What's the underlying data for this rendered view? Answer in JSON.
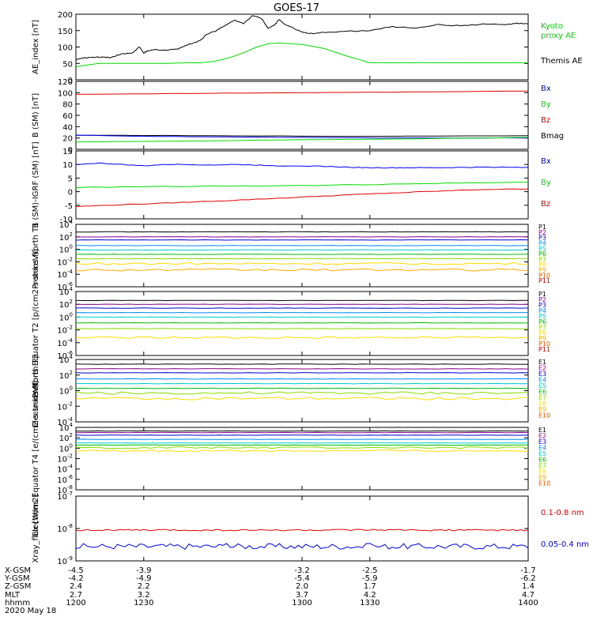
{
  "title": "GOES-17",
  "colors": {
    "black": "#000000",
    "blue": "#0000ee",
    "green": "#00dd00",
    "red": "#dd0000",
    "P": [
      "#000000",
      "#880088",
      "#0000cc",
      "#0088ff",
      "#00cccc",
      "#00bb00",
      "#88dd00",
      "#ffdd00",
      "#ffaa00",
      "#ee5500",
      "#cc0000"
    ],
    "E": [
      "#000000",
      "#880088",
      "#0000cc",
      "#0088ff",
      "#00cccc",
      "#00bb00",
      "#88dd00",
      "#ffdd00",
      "#ffaa00",
      "#ee5500",
      "#cc0000"
    ]
  },
  "chart_data": [
    {
      "id": "ae",
      "type": "line",
      "ylabel": "AE_index [nT]",
      "ylim": [
        0,
        200
      ],
      "yticks": [
        "0",
        "50",
        "100",
        "150",
        "200"
      ],
      "series": [
        {
          "name": "Kyoto proxy AE",
          "color": "green",
          "x": [
            1200,
            1210,
            1220,
            1230,
            1240,
            1250,
            1255,
            1260,
            1265,
            1270,
            1275,
            1280,
            1285,
            1290,
            1300,
            1310,
            1320,
            1330,
            1340,
            1350,
            1360,
            1370,
            1380,
            1390,
            1400
          ],
          "y": [
            40,
            50,
            50,
            50,
            50,
            52,
            52,
            55,
            62,
            72,
            85,
            100,
            110,
            112,
            108,
            95,
            72,
            52,
            52,
            52,
            52,
            52,
            52,
            52,
            52
          ]
        },
        {
          "name": "Themis AE",
          "color": "black",
          "x": [
            1200,
            1203,
            1206,
            1210,
            1215,
            1220,
            1225,
            1228,
            1230,
            1232,
            1235,
            1240,
            1245,
            1250,
            1255,
            1258,
            1262,
            1266,
            1270,
            1274,
            1278,
            1282,
            1285,
            1288,
            1290,
            1292,
            1295,
            1300,
            1305,
            1310,
            1320,
            1330,
            1340,
            1350,
            1360,
            1370,
            1380,
            1390,
            1395,
            1400
          ],
          "y": [
            62,
            66,
            68,
            70,
            68,
            78,
            82,
            100,
            82,
            88,
            92,
            90,
            95,
            108,
            120,
            140,
            150,
            165,
            182,
            172,
            195,
            188,
            158,
            168,
            185,
            170,
            162,
            145,
            140,
            145,
            148,
            150,
            162,
            158,
            168,
            165,
            170,
            168,
            172,
            170
          ]
        }
      ],
      "legend": [
        {
          "label": "Kyoto",
          "color": "green"
        },
        {
          "label": "proxy AE",
          "color": "green"
        },
        {
          "label": "Themis AE",
          "color": "black"
        }
      ]
    },
    {
      "id": "bsm",
      "type": "line",
      "ylabel": "B (SM) [nT]",
      "ylim": [
        0,
        120
      ],
      "yticks": [
        "0",
        "20",
        "40",
        "60",
        "80",
        "100",
        "120"
      ],
      "series": [
        {
          "name": "Bmag",
          "color": "black",
          "x": [
            1200,
            1260,
            1320,
            1400
          ],
          "y": [
            25,
            24,
            23,
            24
          ]
        },
        {
          "name": "Bz",
          "color": "red",
          "x": [
            1200,
            1230,
            1260,
            1300,
            1340,
            1400
          ],
          "y": [
            97,
            98,
            99,
            100,
            101,
            103
          ]
        },
        {
          "name": "Bx",
          "color": "blue",
          "x": [
            1200,
            1230,
            1260,
            1300,
            1340,
            1400
          ],
          "y": [
            25,
            23,
            22,
            21,
            20,
            20
          ]
        },
        {
          "name": "By",
          "color": "green",
          "x": [
            1200,
            1230,
            1260,
            1300,
            1340,
            1400
          ],
          "y": [
            13,
            14,
            15,
            17,
            18,
            21
          ]
        }
      ],
      "legend": [
        {
          "label": "Bx",
          "color": "blue"
        },
        {
          "label": "By",
          "color": "green"
        },
        {
          "label": "Bz",
          "color": "red"
        },
        {
          "label": "Bmag",
          "color": "black"
        }
      ]
    },
    {
      "id": "bigrf",
      "type": "line",
      "ylabel": "B (SM)-IGRF (SM) [nT]",
      "ylim": [
        -10,
        15
      ],
      "yticks": [
        "-10",
        "-5",
        "0",
        "5",
        "10",
        "15"
      ],
      "series": [
        {
          "name": "Bx",
          "color": "blue",
          "x": [
            1200,
            1210,
            1220,
            1230,
            1240,
            1250,
            1260,
            1270,
            1280,
            1290,
            1300,
            1310,
            1320,
            1330,
            1340,
            1350,
            1360,
            1370,
            1380,
            1390,
            1400
          ],
          "y": [
            10,
            10.5,
            10,
            9.5,
            10,
            10,
            9.8,
            10,
            9.8,
            9.5,
            9.5,
            9.3,
            9,
            8.8,
            8.8,
            8.8,
            8.8,
            8.9,
            9,
            9,
            9
          ]
        },
        {
          "name": "By",
          "color": "green",
          "x": [
            1200,
            1230,
            1260,
            1300,
            1340,
            1370,
            1400
          ],
          "y": [
            1.5,
            1.8,
            2,
            2.2,
            2.8,
            3.2,
            3.5
          ]
        },
        {
          "name": "Bz",
          "color": "red",
          "x": [
            1200,
            1220,
            1240,
            1260,
            1280,
            1300,
            1320,
            1340,
            1360,
            1380,
            1400
          ],
          "y": [
            -5.5,
            -4.8,
            -4.2,
            -3.5,
            -2.8,
            -2,
            -1.2,
            -0.5,
            0.2,
            0.8,
            1
          ]
        }
      ],
      "legend": [
        {
          "label": "Bx",
          "color": "blue"
        },
        {
          "label": "By",
          "color": "green"
        },
        {
          "label": "Bz",
          "color": "red"
        }
      ]
    },
    {
      "id": "pn",
      "type": "line",
      "yscale": "log",
      "ylabel": "Protons North T1",
      "ylim_exp": [
        -6,
        4
      ],
      "yticks": [
        "10^-6",
        "10^-4",
        "10^-2",
        "10^0",
        "10^2",
        "10^4"
      ],
      "levels": [
        2.8,
        2.0,
        1.5,
        0.6,
        -0.1,
        -0.8,
        -1.5,
        -2.3,
        -3.3,
        null,
        null
      ],
      "legend": [
        "P1",
        "P2",
        "P3",
        "P4",
        "P5",
        "P6",
        "P7",
        "P8",
        "P9",
        "P10",
        "P11"
      ]
    },
    {
      "id": "pe",
      "type": "line",
      "yscale": "log",
      "ylabel": "Protons Equator T2 [p/(cm2-s-sr-keV)]",
      "ylim_exp": [
        -6,
        4
      ],
      "yticks": [
        "10^-6",
        "10^-4",
        "10^-2",
        "10^0",
        "10^2",
        "10^4"
      ],
      "levels": [
        2.6,
        2.0,
        1.4,
        0.7,
        0.0,
        -0.9,
        -1.8,
        -3.2,
        null,
        null,
        null
      ],
      "legend": [
        "P1",
        "P2",
        "P3",
        "P4",
        "P5",
        "P6",
        "P7",
        "P8",
        "P9",
        "P10",
        "P11"
      ]
    },
    {
      "id": "en",
      "type": "line",
      "yscale": "log",
      "ylabel": "Electrons North T3",
      "ylim_exp": [
        -4,
        4
      ],
      "yticks": [
        "10^-4",
        "10^-2",
        "10^0",
        "10^2",
        "10^4"
      ],
      "levels": [
        3.4,
        2.8,
        2.3,
        1.5,
        0.9,
        0.3,
        -0.3,
        -1.0,
        null,
        null
      ],
      "legend": [
        "E1",
        "E2",
        "E3",
        "E4",
        "E5",
        "E6",
        "E7",
        "E8",
        "E9",
        "E10"
      ]
    },
    {
      "id": "ee",
      "type": "line",
      "yscale": "log",
      "ylabel": "Electrons Equator T4 [e/(cm2-s-sr-keV)]",
      "ylim_exp": [
        -8,
        4
      ],
      "yticks": [
        "10^-8",
        "10^-6",
        "10^-4",
        "10^-2",
        "10^0",
        "10^2",
        "10^4"
      ],
      "levels": [
        3.3,
        3.0,
        2.5,
        1.7,
        1.0,
        0.6,
        0.1,
        -0.5,
        null,
        null
      ],
      "legend": [
        "E1",
        "E2",
        "E3",
        "E4",
        "E5",
        "E6",
        "E7",
        "E8",
        "E9",
        "E10"
      ]
    },
    {
      "id": "xray",
      "type": "line",
      "yscale": "log",
      "ylabel": "Xray_flux [W/m2]",
      "ylim_exp": [
        -9,
        -7
      ],
      "yticks": [
        "10^-9",
        "10^-8",
        "10^-7"
      ],
      "series": [
        {
          "name": "0.1-0.8 nm",
          "color": "red",
          "level": -8.05
        },
        {
          "name": "0.05-0.4 nm",
          "color": "blue",
          "level": -8.55
        }
      ],
      "legend": [
        {
          "label": "0.1-0.8 nm",
          "color": "red"
        },
        {
          "label": "0.05-0.4 nm",
          "color": "blue"
        }
      ]
    }
  ],
  "x_axis": {
    "xlim": [
      1200,
      1400
    ],
    "row_labels": [
      "X-GSM",
      "Y-GSM",
      "Z-GSM",
      "MLT",
      "hhmm",
      "2020 May 18"
    ],
    "columns": [
      {
        "hhmm": "1200",
        "X-GSM": "-4.5",
        "Y-GSM": "-4.2",
        "Z-GSM": "2.4",
        "MLT": "2.7"
      },
      {
        "hhmm": "1230",
        "X-GSM": "-3.9",
        "Y-GSM": "-4.9",
        "Z-GSM": "2.2",
        "MLT": "3.2"
      },
      {
        "hhmm": "1300",
        "X-GSM": "-3.2",
        "Y-GSM": "-5.4",
        "Z-GSM": "2.0",
        "MLT": "3.7"
      },
      {
        "hhmm": "1330",
        "X-GSM": "-2.5",
        "Y-GSM": "-5.9",
        "Z-GSM": "1.7",
        "MLT": "4.2"
      },
      {
        "hhmm": "1400",
        "X-GSM": "-1.7",
        "Y-GSM": "-6.2",
        "Z-GSM": "1.4",
        "MLT": "4.7"
      }
    ]
  }
}
